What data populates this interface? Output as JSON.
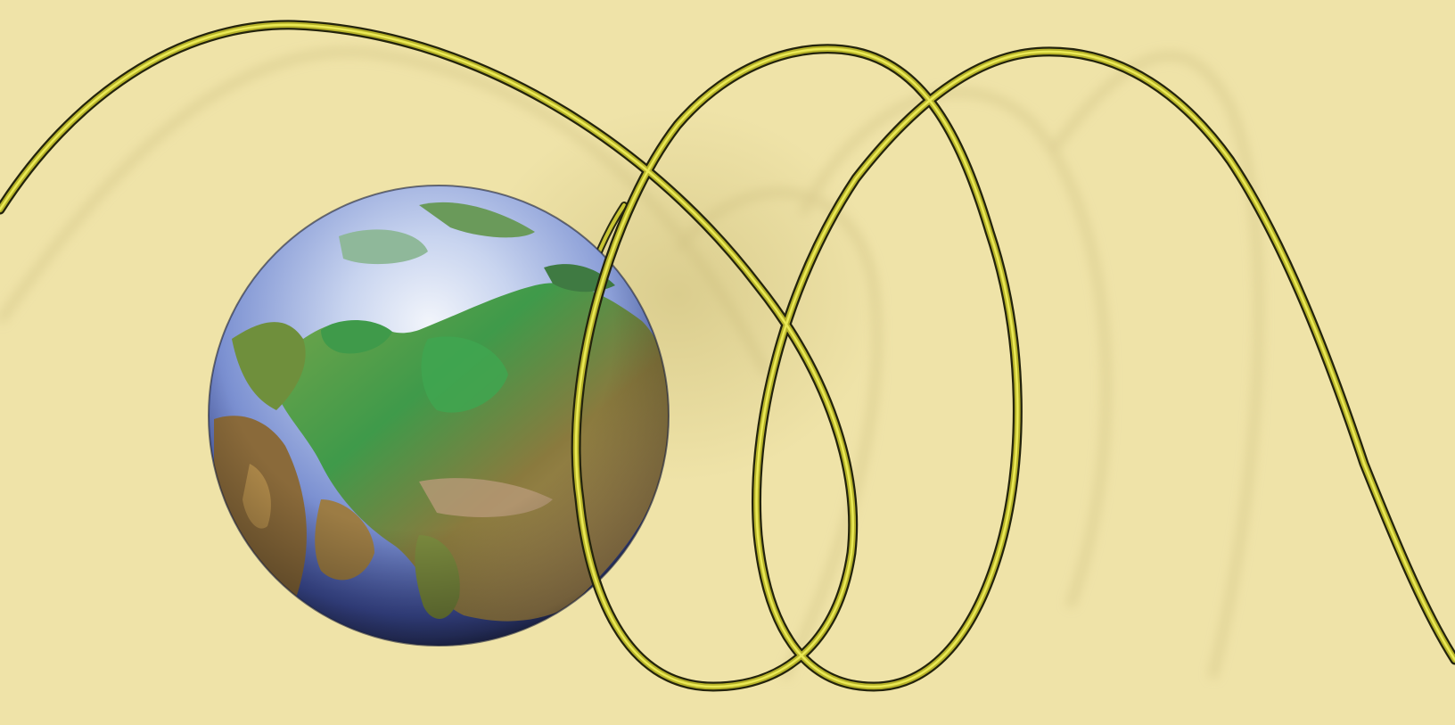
{
  "scene": {
    "subject": "globe-with-orbiting-cable",
    "colors": {
      "background": "#efe3a8",
      "ocean_light": "#e9f0f8",
      "ocean_mid": "#9fb4e0",
      "ocean_dark": "#4a5fb0",
      "land_green": "#3f9a4a",
      "land_dark_green": "#2f6b2f",
      "land_brown": "#8a6a3a",
      "land_tan": "#c2a86a",
      "cable_yellow": "#e6e23a",
      "cable_dark": "#2a2a10",
      "shadow": "#cbbd7f"
    }
  }
}
